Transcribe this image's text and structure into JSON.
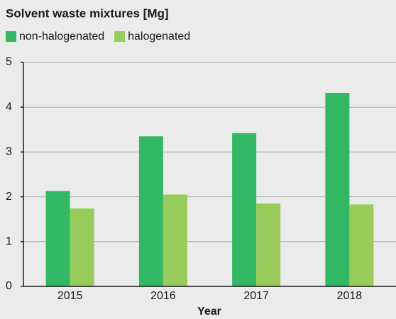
{
  "chart_data": {
    "type": "bar",
    "title": "Solvent waste mixtures [Mg]",
    "x_label": "Year",
    "categories": [
      "2015",
      "2016",
      "2017",
      "2018"
    ],
    "series": [
      {
        "name": "non-halogenated",
        "color": "#31b863",
        "values": [
          2.13,
          3.35,
          3.42,
          4.32
        ]
      },
      {
        "name": "halogenated",
        "color": "#97cc5b",
        "values": [
          1.74,
          2.05,
          1.85,
          1.83
        ]
      }
    ],
    "ylim": [
      0,
      5
    ],
    "yticks": [
      0,
      1,
      2,
      3,
      4,
      5
    ],
    "grid": true,
    "legend": "top-left"
  }
}
